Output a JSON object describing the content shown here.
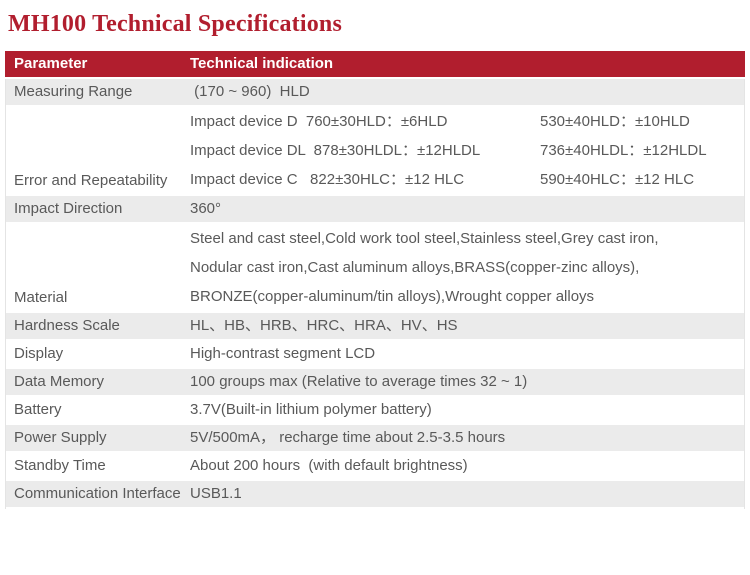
{
  "title": "MH100 Technical Specifications",
  "colors": {
    "accent_red": "#b11e2e",
    "header_text": "#ffffff",
    "row_shade": "#ebebeb",
    "body_text": "#595959"
  },
  "table": {
    "headers": [
      "Parameter",
      "Technical indication"
    ],
    "rows": [
      {
        "key": "measuring-range",
        "param": "Measuring Range",
        "lines": [
          " (170 ~ 960)  HLD"
        ]
      },
      {
        "key": "error-repeatability",
        "param": "Error and Repeatability",
        "lines": [
          {
            "left": "Impact device D  760±30HLD：±6HLD",
            "right": "530±40HLD：±10HLD"
          },
          {
            "left": "Impact device DL  878±30HLDL：±12HLDL",
            "right": "736±40HLDL：±12HLDL"
          },
          {
            "left": "Impact device C   822±30HLC：±12 HLC",
            "right": "590±40HLC：±12 HLC"
          }
        ]
      },
      {
        "key": "impact-direction",
        "param": "Impact Direction",
        "lines": [
          "360°"
        ]
      },
      {
        "key": "material",
        "param": "Material",
        "lines": [
          "Steel and cast steel,Cold work tool steel,Stainless steel,Grey cast iron,",
          "Nodular cast iron,Cast aluminum alloys,BRASS(copper-zinc alloys),",
          "BRONZE(copper-aluminum/tin alloys),Wrought copper alloys"
        ]
      },
      {
        "key": "hardness-scale",
        "param": "Hardness Scale",
        "lines": [
          "HL、HB、HRB、HRC、HRA、HV、HS"
        ]
      },
      {
        "key": "display",
        "param": "Display",
        "lines": [
          "High-contrast segment LCD"
        ]
      },
      {
        "key": "data-memory",
        "param": "Data Memory",
        "lines": [
          "100 groups max (Relative to average times 32 ~ 1)"
        ]
      },
      {
        "key": "battery",
        "param": "Battery",
        "lines": [
          "3.7V(Built-in lithium polymer battery)"
        ]
      },
      {
        "key": "power-supply",
        "param": "Power Supply",
        "lines": [
          "5V/500mA， recharge time about 2.5-3.5 hours"
        ]
      },
      {
        "key": "standby-time",
        "param": "Standby Time",
        "lines": [
          "About 200 hours  (with default brightness)"
        ]
      },
      {
        "key": "communication-interface",
        "param": "Communication Interface",
        "lines": [
          "USB1.1"
        ]
      }
    ]
  }
}
